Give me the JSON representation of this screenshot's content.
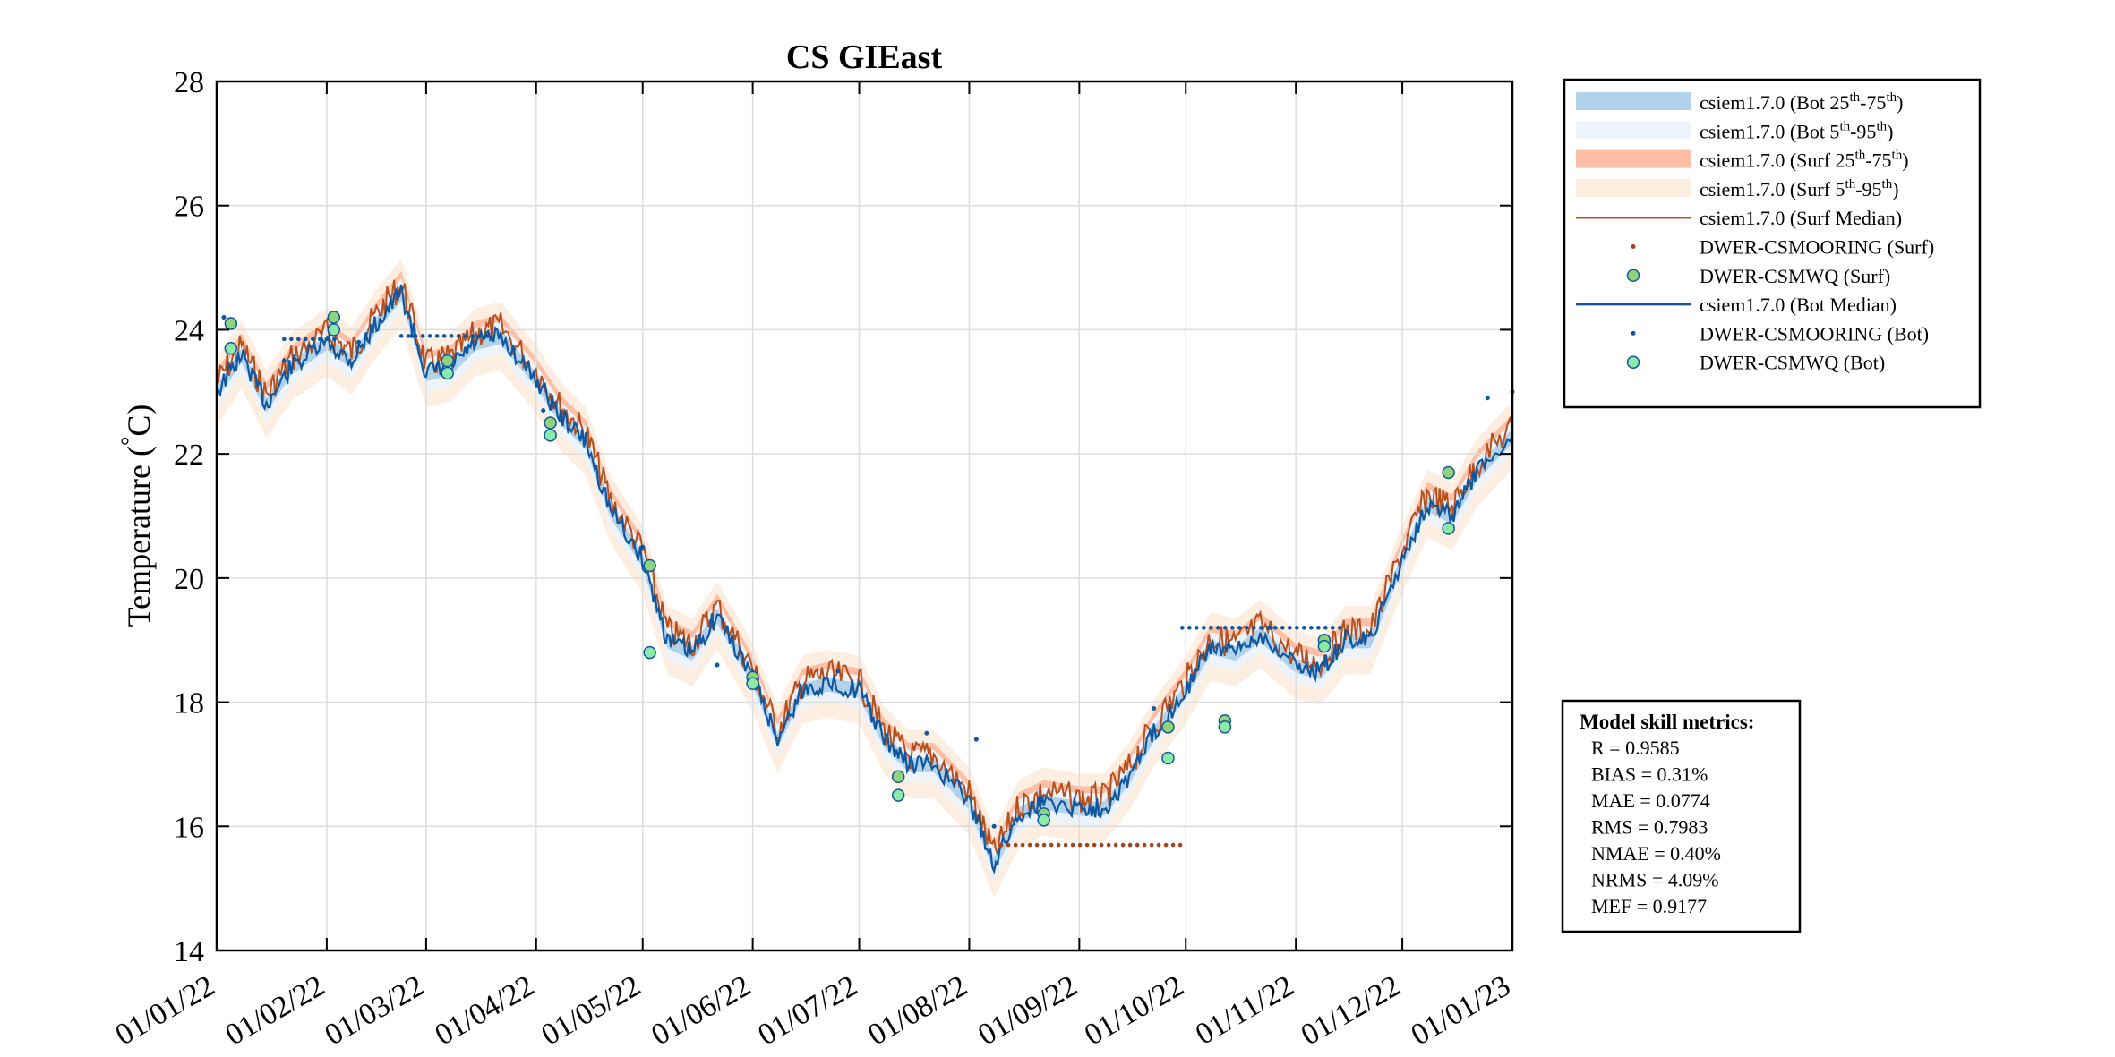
{
  "chart_data": {
    "type": "line",
    "title": "CS GIEast",
    "ylabel_prefix": "Temperature (",
    "ylabel_degree": "°",
    "ylabel_unit": "C)",
    "xlabel": "",
    "ylim": [
      14,
      28
    ],
    "yticks": [
      14,
      16,
      18,
      20,
      22,
      24,
      26,
      28
    ],
    "xlim": [
      "2022-01-01",
      "2023-01-01"
    ],
    "xtick_labels": [
      "01/01/22",
      "01/02/22",
      "01/03/22",
      "01/04/22",
      "01/05/22",
      "01/06/22",
      "01/07/22",
      "01/08/22",
      "01/09/22",
      "01/10/22",
      "01/11/22",
      "01/12/22",
      "01/01/23"
    ],
    "grid": true,
    "legend_position": "outside-top-right",
    "colors": {
      "bot_25_75": "#b0d2ea",
      "bot_5_95": "#edf3fa",
      "surf_25_75": "#fcbfa6",
      "surf_5_95": "#fdeee2",
      "surf_median": "#b5501e",
      "surf_mooring": "#a0451c",
      "surf_mwq_fill": "#8fd47a",
      "bot_median": "#10579f",
      "bot_mooring": "#10579f",
      "bot_mwq_fill": "#8ceaa8"
    },
    "legend": [
      {
        "base": "csiem1.7.0 (Bot 25",
        "sup1": "th",
        "mid": "-75",
        "sup2": "th",
        "end": ")",
        "swatch": "bot_25_75"
      },
      {
        "base": "csiem1.7.0 (Bot 5",
        "sup1": "th",
        "mid": "-95",
        "sup2": "th",
        "end": ")",
        "swatch": "bot_5_95"
      },
      {
        "base": "csiem1.7.0 (Surf 25",
        "sup1": "th",
        "mid": "-75",
        "sup2": "th",
        "end": ")",
        "swatch": "surf_25_75"
      },
      {
        "base": "csiem1.7.0 (Surf 5",
        "sup1": "th",
        "mid": "-95",
        "sup2": "th",
        "end": ")",
        "swatch": "surf_5_95"
      },
      {
        "base": "csiem1.7.0 (Surf Median)",
        "line": "surf_median"
      },
      {
        "base": "DWER-CSMOORING (Surf)",
        "dot": "surf_mooring"
      },
      {
        "base": "DWER-CSMWQ (Surf)",
        "circle": "surf_mwq_fill"
      },
      {
        "base": "csiem1.7.0 (Bot Median)",
        "line": "bot_median"
      },
      {
        "base": "DWER-CSMOORING (Bot)",
        "dot": "bot_mooring"
      },
      {
        "base": "DWER-CSMWQ (Bot)",
        "circle": "bot_mwq_fill"
      }
    ],
    "series": [
      {
        "name": "csiem1.7.0 (Bot Median)",
        "x": [
          "2022-01-01",
          "2022-01-08",
          "2022-01-15",
          "2022-01-22",
          "2022-02-01",
          "2022-02-08",
          "2022-02-15",
          "2022-02-22",
          "2022-03-01",
          "2022-03-08",
          "2022-03-15",
          "2022-03-22",
          "2022-04-01",
          "2022-04-08",
          "2022-04-15",
          "2022-04-22",
          "2022-05-01",
          "2022-05-08",
          "2022-05-15",
          "2022-05-22",
          "2022-06-01",
          "2022-06-08",
          "2022-06-15",
          "2022-06-22",
          "2022-07-01",
          "2022-07-08",
          "2022-07-15",
          "2022-07-22",
          "2022-08-01",
          "2022-08-08",
          "2022-08-15",
          "2022-08-22",
          "2022-09-01",
          "2022-09-08",
          "2022-09-15",
          "2022-09-22",
          "2022-10-01",
          "2022-10-08",
          "2022-10-15",
          "2022-10-22",
          "2022-11-01",
          "2022-11-08",
          "2022-11-15",
          "2022-11-22",
          "2022-12-01",
          "2022-12-08",
          "2022-12-15",
          "2022-12-22",
          "2023-01-01"
        ],
        "y": [
          23.0,
          23.6,
          22.8,
          23.4,
          23.8,
          23.5,
          24.1,
          24.6,
          23.3,
          23.4,
          23.8,
          23.9,
          23.2,
          22.6,
          22.2,
          21.1,
          20.3,
          19.0,
          18.8,
          19.4,
          18.4,
          17.4,
          18.2,
          18.3,
          18.2,
          17.4,
          17.0,
          17.0,
          16.4,
          15.4,
          16.2,
          16.4,
          16.3,
          16.3,
          16.8,
          17.5,
          18.2,
          18.9,
          18.8,
          19.1,
          18.6,
          18.5,
          19.0,
          19.0,
          20.3,
          21.2,
          21.0,
          21.7,
          22.3
        ]
      },
      {
        "name": "DWER-CSMOORING (Surf)",
        "x": [
          "2022-08-10",
          "2022-09-30"
        ],
        "y": [
          15.7,
          15.7
        ]
      },
      {
        "name": "DWER-CSMOORING (Bot)",
        "x": [
          "2022-01-03",
          "2022-01-20",
          "2022-02-10",
          "2022-02-25",
          "2022-03-18",
          "2022-04-03",
          "2022-05-01",
          "2022-05-22",
          "2022-06-25",
          "2022-07-20",
          "2022-08-03",
          "2022-08-08",
          "2022-09-22",
          "2022-10-25",
          "2022-12-25",
          "2023-01-01"
        ],
        "y": [
          24.2,
          23.5,
          23.8,
          23.9,
          23.9,
          22.7,
          20.5,
          18.6,
          18.5,
          17.5,
          17.4,
          16.0,
          17.9,
          19.2,
          22.9,
          23.0
        ]
      },
      {
        "name": "DWER-CSMWQ (Surf)",
        "x": [
          "2022-01-05",
          "2022-02-03",
          "2022-03-07",
          "2022-04-05",
          "2022-05-03",
          "2022-06-01",
          "2022-07-12",
          "2022-08-22",
          "2022-09-26",
          "2022-10-12",
          "2022-11-09",
          "2022-12-14"
        ],
        "y": [
          24.1,
          24.2,
          23.5,
          22.5,
          20.2,
          18.4,
          16.8,
          16.2,
          17.6,
          17.7,
          19.0,
          21.7
        ]
      },
      {
        "name": "DWER-CSMWQ (Bot)",
        "x": [
          "2022-01-05",
          "2022-02-03",
          "2022-03-07",
          "2022-04-05",
          "2022-05-03",
          "2022-06-01",
          "2022-07-12",
          "2022-08-22",
          "2022-09-26",
          "2022-10-12",
          "2022-11-09",
          "2022-12-14"
        ],
        "y": [
          23.7,
          24.0,
          23.3,
          22.3,
          18.8,
          18.3,
          16.5,
          16.1,
          17.1,
          17.6,
          18.9,
          20.8
        ]
      }
    ],
    "metrics": {
      "title": "Model skill metrics:",
      "lines": [
        "R    = 0.9585",
        "BIAS = 0.31%",
        "MAE  = 0.0774",
        "RMS  = 0.7983",
        "NMAE = 0.40%",
        "NRMS = 4.09%",
        "MEF  = 0.9177"
      ]
    }
  }
}
